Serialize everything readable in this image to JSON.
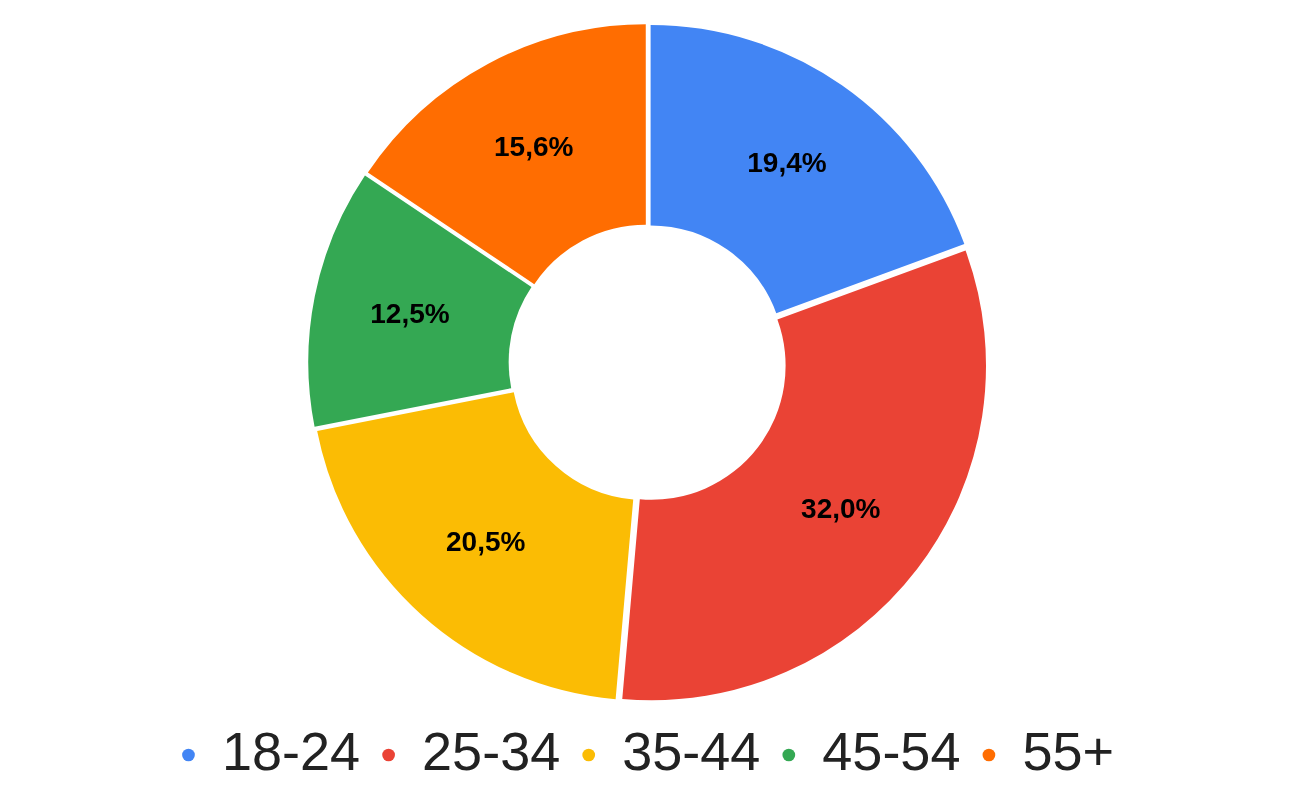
{
  "chart_data": {
    "type": "donut",
    "categories": [
      "18-24",
      "25-34",
      "35-44",
      "45-54",
      "55+"
    ],
    "values": [
      19.4,
      32.0,
      20.5,
      12.5,
      15.6
    ],
    "colors": [
      "#4285f4",
      "#ea4335",
      "#fbbc04",
      "#34a853",
      "#ff6d01"
    ],
    "value_labels": [
      "19,4%",
      "32,0%",
      "20,5%",
      "12,5%",
      "15,6%"
    ],
    "legend": "bottom"
  }
}
